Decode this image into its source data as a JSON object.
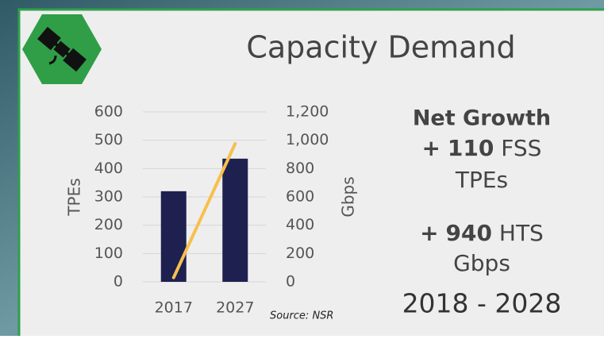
{
  "chart_data": {
    "type": "bar-line",
    "title": "Capacity Demand",
    "categories": [
      "2017",
      "2027"
    ],
    "series": [
      {
        "type": "bar",
        "color": "#1e2050",
        "values": [
          320,
          435
        ]
      },
      {
        "type": "line",
        "color": "#f6c04e",
        "values": [
          30,
          975
        ],
        "axis": "y2"
      }
    ],
    "ylabel": "TPEs",
    "y2label": "Gbps",
    "ylim": [
      0,
      600
    ],
    "yticks": [
      0,
      100,
      200,
      300,
      400,
      500,
      600
    ],
    "y2lim": [
      0,
      1200
    ],
    "y2ticks": [
      0,
      200,
      400,
      600,
      800,
      {
        "value": 1000,
        "label": "1,000"
      },
      {
        "value": 1200,
        "label": "1,200"
      }
    ],
    "grid": true,
    "source": "Source: NSR"
  },
  "callout": {
    "heading": "Net Growth",
    "items": [
      {
        "prefix": "+",
        "number": 110,
        "unit": "FSS",
        "measure": "TPEs"
      },
      {
        "prefix": "+",
        "number": 940,
        "unit": "HTS",
        "measure": "Gbps"
      }
    ],
    "period": "2018 - 2028"
  }
}
